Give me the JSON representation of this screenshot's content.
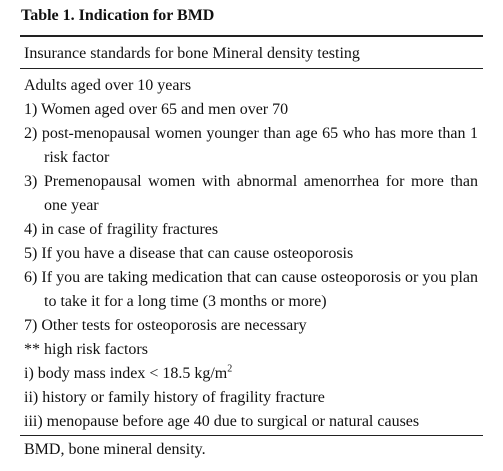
{
  "title": "Table 1. Indication for BMD",
  "table": {
    "header": "Insurance standards for bone Mineral density testing",
    "rows": [
      {
        "text": "Adults aged over 10 years"
      },
      {
        "text": "1) Women aged over 65 and men over 70"
      },
      {
        "text": "2) post-menopausal women younger than age 65 who has more than 1 risk factor"
      },
      {
        "text": "3) Premenopausal women with abnormal amenorrhea for more than one year"
      },
      {
        "text": "4) in case of fragility fractures"
      },
      {
        "text": "5) If you have a disease that can cause osteoporosis"
      },
      {
        "text": "6) If you are taking medication that can cause osteoporosis or you plan to take it for a long time (3 months or more)"
      },
      {
        "text": "7) Other tests for osteoporosis are necessary"
      },
      {
        "text": "** high risk factors"
      },
      {
        "text": "i) body mass index < 18.5 kg/m",
        "superscript": "2"
      },
      {
        "text": "ii) history or family history of fragility fracture"
      },
      {
        "text": "iii) menopause before age 40 due to surgical or natural causes"
      }
    ],
    "footnote": "BMD, bone mineral density."
  }
}
